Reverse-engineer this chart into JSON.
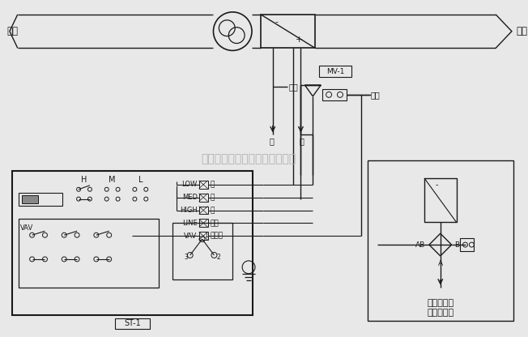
{
  "bg_color": "#e8e8e8",
  "line_color": "#1a1a1a",
  "watermark": "永嘉县宏大电磁阀制造有限公司",
  "label_huifeng": "回风",
  "label_songfeng": "送风",
  "label_lingxian1": "零线",
  "label_lingxian2": "零线",
  "label_MV1": "MV-1",
  "label_ST1": "ST-1",
  "label_LOW": "LOW",
  "label_MED": "MED",
  "label_HIGH": "HIGH",
  "label_LINE": "LINE",
  "label_VAV": "VAV",
  "label_di": "低",
  "label_zhong": "中",
  "label_gao": "高",
  "label_huoxian": "火线",
  "label_diankongfa": "电控阀",
  "label_H": "H",
  "label_M": "M",
  "label_L": "L",
  "label_valve_title": "三通电动阀",
  "label_valve_subtitle": "管路连接图",
  "label_shui1": "水",
  "label_shui2": "水",
  "label_minus": "-",
  "label_plus": "+",
  "label_1": "1",
  "label_2": "2",
  "label_3": "3"
}
